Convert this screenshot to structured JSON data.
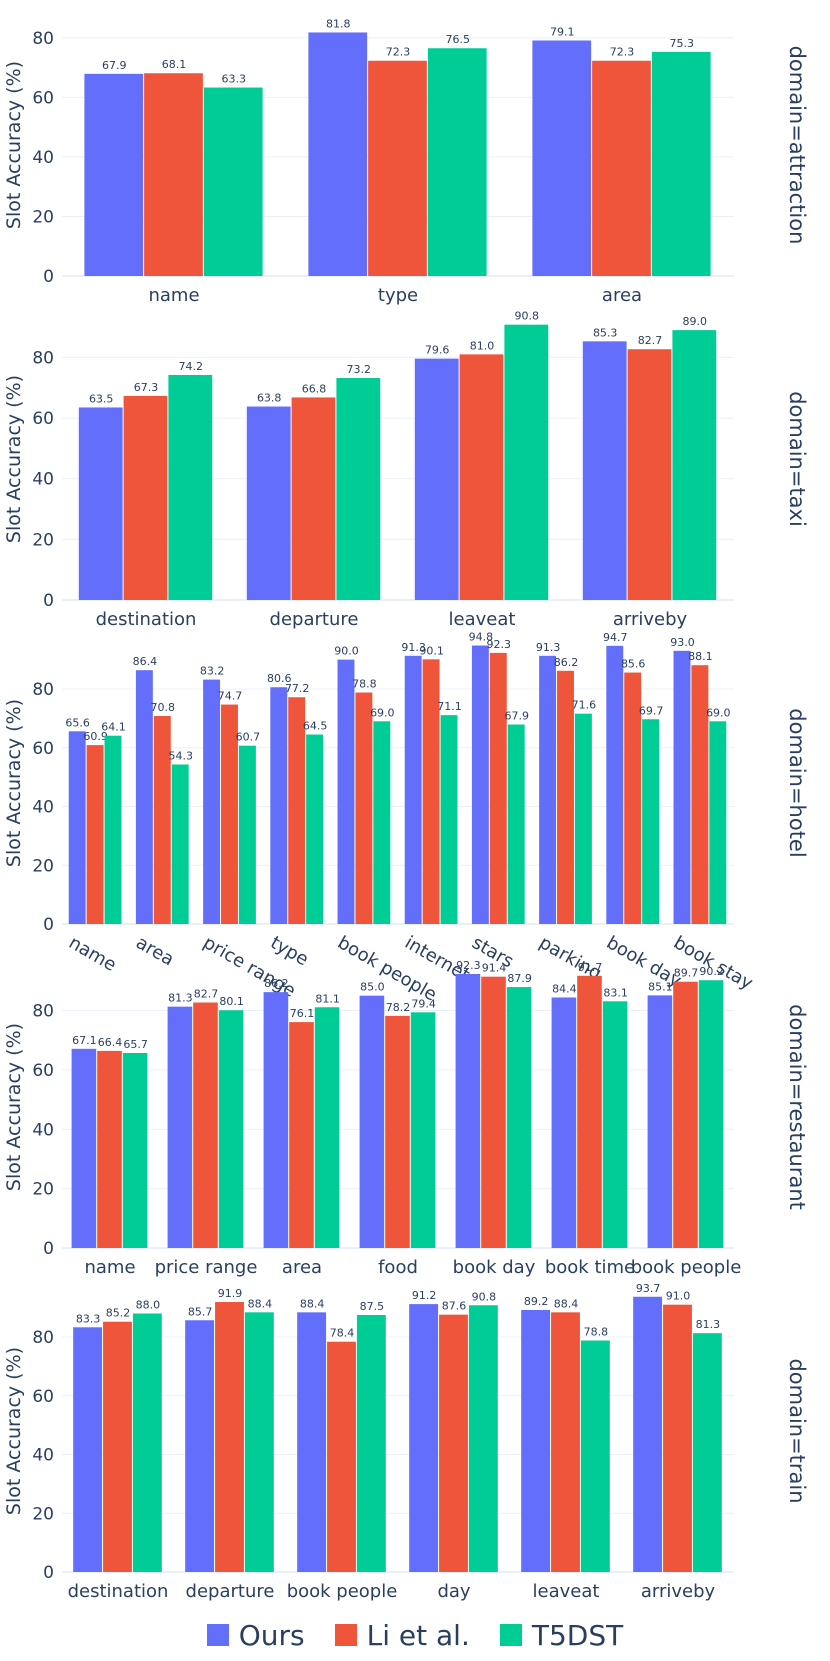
{
  "chart_data": {
    "type": "bar",
    "yaxis_title": "Slot Accuracy (%)",
    "y_ticks": [
      0,
      20,
      40,
      60,
      80
    ],
    "legend_position": "bottom-center",
    "series": [
      {
        "name": "Ours",
        "color": "#636efa"
      },
      {
        "name": "Li et al.",
        "color": "#ef553b"
      },
      {
        "name": "T5DST",
        "color": "#00cc96"
      }
    ],
    "legend": [
      {
        "label": "Ours",
        "color": "#636efa"
      },
      {
        "label": "Li et al.",
        "color": "#ef553b"
      },
      {
        "label": "T5DST",
        "color": "#00cc96"
      }
    ],
    "panels": [
      {
        "domain_label": "domain=attraction",
        "ylim": [
          0,
          88
        ],
        "rotate_ticks": false,
        "categories": [
          "name",
          "type",
          "area"
        ],
        "values": [
          [
            67.9,
            81.8,
            79.1
          ],
          [
            68.1,
            72.3,
            72.3
          ],
          [
            63.3,
            76.5,
            75.3
          ]
        ],
        "data_labels": [
          [
            "67.9",
            "81.8",
            "79.1"
          ],
          [
            "68.1",
            "72.3",
            "72.3"
          ],
          [
            "63.3",
            "76.5",
            "75.3"
          ]
        ]
      },
      {
        "domain_label": "domain=taxi",
        "ylim": [
          0,
          93
        ],
        "rotate_ticks": false,
        "categories": [
          "destination",
          "departure",
          "leaveat",
          "arriveby"
        ],
        "values": [
          [
            63.5,
            63.8,
            79.6,
            85.3
          ],
          [
            67.3,
            66.8,
            81.0,
            82.7
          ],
          [
            74.2,
            73.2,
            90.8,
            89.0
          ]
        ],
        "data_labels": [
          [
            "63.5",
            "63.8",
            "79.6",
            "85.3"
          ],
          [
            "67.3",
            "66.8",
            "81.0",
            "82.7"
          ],
          [
            "74.2",
            "73.2",
            "90.8",
            "89.0"
          ]
        ]
      },
      {
        "domain_label": "domain=hotel",
        "ylim": [
          0,
          96
        ],
        "rotate_ticks": true,
        "categories": [
          "name",
          "area",
          "price range",
          "type",
          "book people",
          "internet",
          "stars",
          "parking",
          "book day",
          "book stay"
        ],
        "values": [
          [
            65.6,
            86.4,
            83.2,
            80.6,
            90.0,
            91.3,
            94.8,
            91.3,
            94.7,
            93.0
          ],
          [
            60.9,
            70.8,
            74.7,
            77.2,
            78.8,
            90.1,
            92.3,
            86.2,
            85.6,
            88.1
          ],
          [
            64.1,
            54.3,
            60.7,
            64.5,
            69.0,
            71.1,
            67.9,
            71.6,
            69.7,
            69.0
          ]
        ],
        "data_labels": [
          [
            "65.6",
            "86.4",
            "83.2",
            "80.6",
            "90.0",
            "91.3",
            "94.8",
            "91.3",
            "94.7",
            "93.0"
          ],
          [
            "60.9",
            "70.8",
            "74.7",
            "77.2",
            "78.8",
            "90.1",
            "92.3",
            "86.2",
            "85.6",
            "88.1"
          ],
          [
            "64.1",
            "54.3",
            "60.7",
            "64.5",
            "69.0",
            "71.1",
            "67.9",
            "71.6",
            "69.7",
            "69.0"
          ]
        ]
      },
      {
        "domain_label": "domain=restaurant",
        "ylim": [
          0,
          95
        ],
        "rotate_ticks": false,
        "categories": [
          "name",
          "price range",
          "area",
          "food",
          "book day",
          "book time",
          "book people"
        ],
        "values": [
          [
            67.1,
            81.3,
            86.2,
            85.0,
            92.3,
            84.4,
            85.1
          ],
          [
            66.4,
            82.7,
            76.1,
            78.2,
            91.4,
            91.7,
            89.7
          ],
          [
            65.7,
            80.1,
            81.1,
            79.4,
            87.9,
            83.1,
            90.2
          ]
        ],
        "data_labels": [
          [
            "67.1",
            "81.3",
            "86.2",
            "85.0",
            "92.3",
            "84.4",
            "85.1"
          ],
          [
            "66.4",
            "82.7",
            "76.1",
            "78.2",
            "91.4",
            "91.7",
            "89.7"
          ],
          [
            "65.7",
            "80.1",
            "81.1",
            "79.4",
            "87.9",
            "83.1",
            "90.2"
          ]
        ]
      },
      {
        "domain_label": "domain=train",
        "ylim": [
          0,
          96
        ],
        "rotate_ticks": false,
        "categories": [
          "destination",
          "departure",
          "book people",
          "day",
          "leaveat",
          "arriveby"
        ],
        "values": [
          [
            83.3,
            85.7,
            88.4,
            91.2,
            89.2,
            93.7
          ],
          [
            85.2,
            91.9,
            78.4,
            87.6,
            88.4,
            91.0
          ],
          [
            88.0,
            88.4,
            87.5,
            90.8,
            78.8,
            81.3
          ]
        ],
        "data_labels": [
          [
            "83.3",
            "85.7",
            "88.4",
            "91.2",
            "89.2",
            "93.7"
          ],
          [
            "85.2",
            "91.9",
            "78.4",
            "87.6",
            "88.4",
            "91.0"
          ],
          [
            "88.0",
            "88.4",
            "87.5",
            "90.8",
            "78.8",
            "81.3"
          ]
        ]
      }
    ]
  }
}
